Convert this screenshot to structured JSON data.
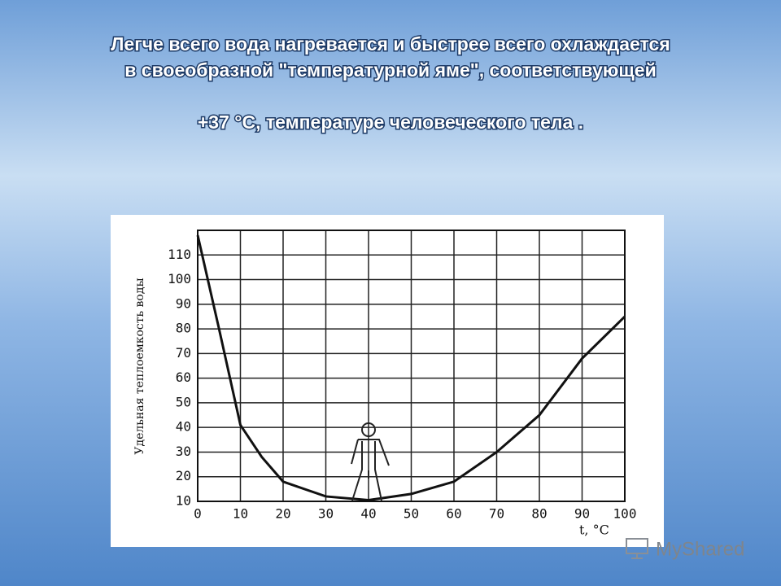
{
  "chart_data": {
    "type": "line",
    "title": [
      "Легче всего вода нагревается и быстрее всего охлаждается",
      "в своеобразной \"температурной яме\", соответствующей"
    ],
    "subtitle": "+37 °C, температуре человеческого тела .",
    "x_label": "t, °C",
    "y_label": "Удельная теплоемкость воды",
    "x": [
      0,
      5,
      10,
      15,
      20,
      30,
      40,
      50,
      60,
      70,
      80,
      90,
      100
    ],
    "values": [
      118,
      80,
      41,
      28,
      18,
      12,
      10.5,
      13,
      18,
      30,
      45,
      68,
      85
    ],
    "color": "#111111",
    "xlim": [
      0,
      100
    ],
    "xticks": [
      0,
      10,
      20,
      30,
      40,
      50,
      60,
      70,
      80,
      90,
      100
    ],
    "ylim": [
      10,
      120
    ],
    "yticks": [
      10,
      20,
      30,
      40,
      50,
      60,
      70,
      80,
      90,
      100,
      110
    ],
    "grid": true
  },
  "watermark": "MyShared"
}
